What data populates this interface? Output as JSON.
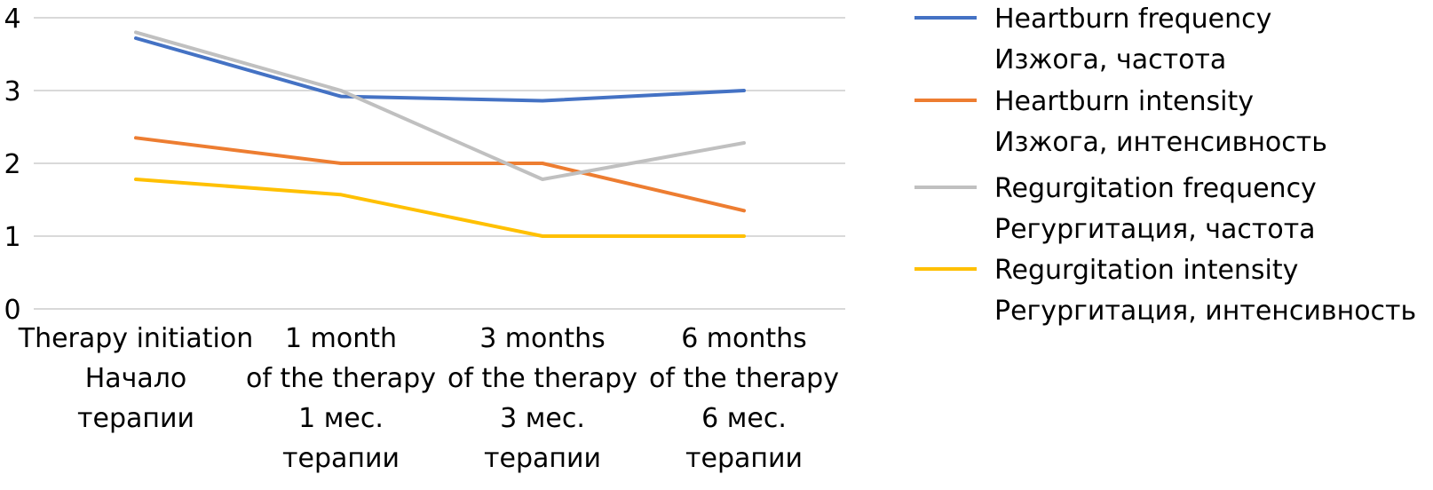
{
  "chart_data": {
    "type": "line",
    "categories": [
      [
        "Therapy initiation",
        "Начало",
        "терапии"
      ],
      [
        "1 month",
        "of the therapy",
        "1 мес.",
        "терапии"
      ],
      [
        "3 months",
        "of the therapy",
        "3 мес.",
        "терапии"
      ],
      [
        "6 months",
        "of the therapy",
        "6 мес.",
        "терапии"
      ]
    ],
    "series": [
      {
        "name": [
          "Heartburn frequency",
          "Изжога, частота"
        ],
        "color": "#4472C4",
        "values": [
          3.72,
          2.92,
          2.86,
          3.0
        ]
      },
      {
        "name": [
          "Heartburn intensity",
          "Изжога, интенсивность"
        ],
        "color": "#ED7D31",
        "values": [
          2.35,
          2.0,
          2.0,
          1.35
        ]
      },
      {
        "name": [
          "Regurgitation frequency",
          "Регургитация, частота"
        ],
        "color": "#C0C0C0",
        "values": [
          3.8,
          3.0,
          1.78,
          2.28
        ]
      },
      {
        "name": [
          "Regurgitation intensity",
          "Регургитация, интенсивность"
        ],
        "color": "#FFC000",
        "values": [
          1.78,
          1.57,
          1.0,
          1.0
        ]
      }
    ],
    "yticks": [
      "0",
      "1",
      "2",
      "3",
      "4"
    ],
    "ylim": [
      0,
      4
    ],
    "title": "",
    "xlabel": "",
    "ylabel": "",
    "grid": true,
    "legend_position": "right"
  }
}
